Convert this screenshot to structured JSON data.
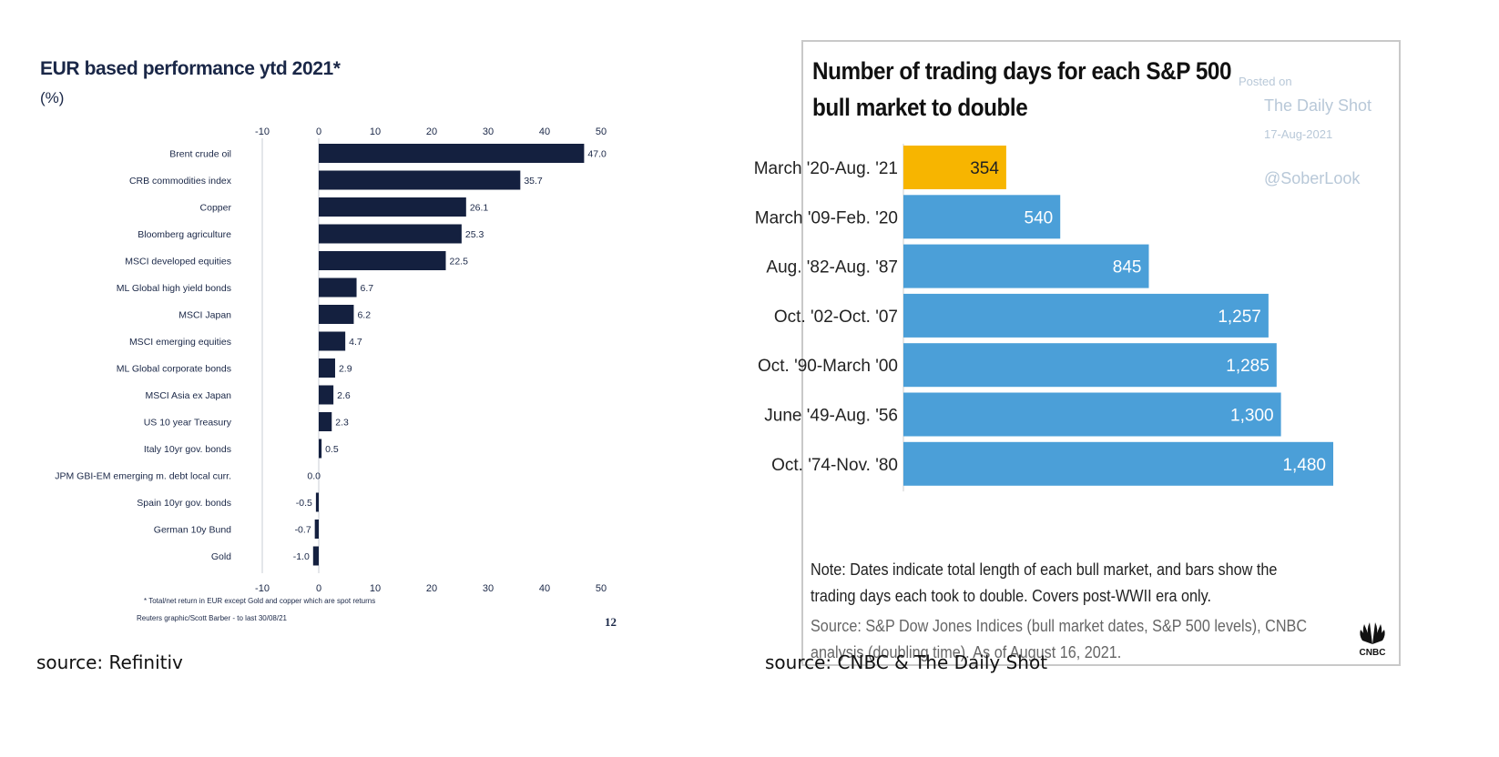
{
  "left_chart": {
    "chart_data": {
      "type": "bar",
      "title": "EUR based performance ytd 2021*",
      "subtitle": "(%)",
      "orientation": "horizontal",
      "categories": [
        "Brent crude oil",
        "CRB commodities index",
        "Copper",
        "Bloomberg agriculture",
        "MSCI developed equities",
        "ML Global high yield bonds",
        "MSCI Japan",
        "MSCI emerging equities",
        "ML Global corporate bonds",
        "MSCI Asia ex Japan",
        "US 10 year Treasury",
        "Italy 10yr gov. bonds",
        "JPM GBI-EM emerging m. debt local curr.",
        "Spain 10yr gov. bonds",
        "German 10y Bund",
        "Gold"
      ],
      "values": [
        47.0,
        35.7,
        26.1,
        25.3,
        22.5,
        6.7,
        6.2,
        4.7,
        2.9,
        2.6,
        2.3,
        0.5,
        0.0,
        -0.5,
        -0.7,
        -1.0
      ],
      "value_labels": [
        "47.0",
        "35.7",
        "26.1",
        "25.3",
        "22.5",
        "6.7",
        "6.2",
        "4.7",
        "2.9",
        "2.6",
        "2.3",
        "0.5",
        "0.0",
        "-0.5",
        "-0.7",
        "-1.0"
      ],
      "xlim": [
        -10,
        50
      ],
      "xticks": [
        "-10",
        "0",
        "10",
        "20",
        "30",
        "40",
        "50"
      ],
      "bar_color": "#14203f",
      "footnote": "* Total/net return in EUR except Gold and copper which are spot returns",
      "credit": "Reuters graphic/Scott Barber -  to last 30/08/21",
      "page_number": "12"
    },
    "caption": "source: Refinitiv"
  },
  "right_chart": {
    "chart_data": {
      "type": "bar",
      "title": "Number of trading days for each S&P 500 bull market to double",
      "orientation": "horizontal",
      "categories": [
        "March '20-Aug. '21",
        "March '09-Feb. '20",
        "Aug. '82-Aug. '87",
        "Oct. '02-Oct. '07",
        "Oct. '90-March '00",
        "June '49-Aug. '56",
        "Oct. '74-Nov. '80"
      ],
      "values": [
        354,
        540,
        845,
        1257,
        1285,
        1300,
        1480
      ],
      "value_labels": [
        "354",
        "540",
        "845",
        "1,257",
        "1,285",
        "1,300",
        "1,480"
      ],
      "colors": [
        "#f7b500",
        "#4b9fd8",
        "#4b9fd8",
        "#4b9fd8",
        "#4b9fd8",
        "#4b9fd8",
        "#4b9fd8"
      ],
      "xlim": [
        0,
        1480
      ]
    },
    "watermark": {
      "posted_on": "Posted on",
      "site": "The Daily Shot",
      "date": "17-Aug-2021",
      "handle": "@SoberLook"
    },
    "note": "Note: Dates indicate total length of each bull market, and bars show the trading days each took to double. Covers post-WWII era only.",
    "source": "Source: S&P Dow Jones Indices (bull market dates, S&P 500 levels), CNBC analysis (doubling time). As of August 16, 2021.",
    "logo_text": "CNBC",
    "caption": "source: CNBC & The Daily Shot"
  }
}
